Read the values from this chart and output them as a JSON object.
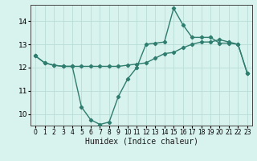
{
  "line1_x": [
    0,
    1,
    2,
    3,
    4,
    5,
    6,
    7,
    8,
    9,
    10,
    11,
    12,
    13,
    14,
    15,
    16,
    17,
    18,
    19,
    20,
    21,
    22,
    23
  ],
  "line1_y": [
    12.5,
    12.2,
    12.1,
    12.05,
    12.05,
    10.3,
    9.75,
    9.55,
    9.65,
    10.75,
    11.5,
    12.0,
    13.0,
    13.05,
    13.1,
    14.55,
    13.85,
    13.3,
    13.3,
    13.3,
    13.05,
    13.05,
    13.0,
    11.75
  ],
  "line2_x": [
    0,
    1,
    2,
    3,
    4,
    5,
    6,
    7,
    8,
    9,
    10,
    11,
    12,
    13,
    14,
    15,
    16,
    17,
    18,
    19,
    20,
    21,
    22,
    23
  ],
  "line2_y": [
    12.5,
    12.2,
    12.1,
    12.05,
    12.05,
    12.05,
    12.05,
    12.05,
    12.05,
    12.05,
    12.1,
    12.15,
    12.2,
    12.4,
    12.6,
    12.65,
    12.85,
    13.0,
    13.1,
    13.1,
    13.2,
    13.1,
    13.0,
    11.75
  ],
  "color": "#2e7d6e",
  "bg_color": "#d8f2ee",
  "grid_color": "#b8ddd8",
  "xlabel": "Humidex (Indice chaleur)",
  "ylim": [
    9.5,
    14.7
  ],
  "xlim": [
    -0.5,
    23.5
  ],
  "yticks": [
    10,
    11,
    12,
    13,
    14
  ],
  "xticks": [
    0,
    1,
    2,
    3,
    4,
    5,
    6,
    7,
    8,
    9,
    10,
    11,
    12,
    13,
    14,
    15,
    16,
    17,
    18,
    19,
    20,
    21,
    22,
    23
  ],
  "fontsize": 6.5,
  "xlabel_fontsize": 7.0,
  "marker": "D",
  "markersize": 2.2,
  "linewidth": 1.0
}
